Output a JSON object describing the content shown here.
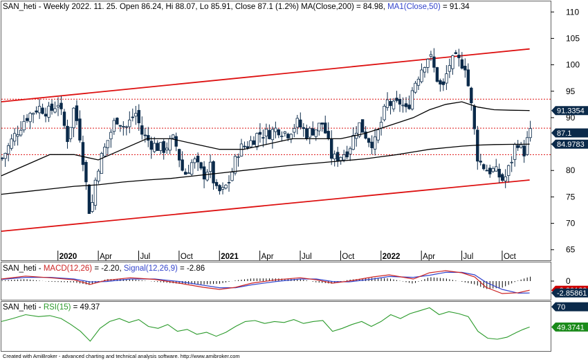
{
  "colors": {
    "candle_up": "#ffffff",
    "candle_down": "#0b2a4a",
    "channel": "#dd1111",
    "ma": "#000000",
    "macd": "#cc2222",
    "signal": "#3344cc",
    "rsi": "#2a9a2a",
    "tag_dark": "#0b2a4a",
    "tag_red": "#cc0000",
    "tag_green": "#1a8a1a"
  },
  "footer": "Created with AmiBroker - advanced charting and technical analysis software. http://www.amibroker.com",
  "chart_data": [
    {
      "type": "candlestick",
      "title": "SAN_heti - Weekly 2022. 11. 25. Open 86.24, Hi 88.07, Lo 85.91, Close 87.1 (1.2%) MA(Close,200) = 84.98, MA1(Close,50) = 91.34",
      "title_parts": {
        "symbol": "SAN_heti",
        "quote": " - Weekly 2022. 11. 25. Open 86.24, Hi 88.07, Lo 85.91, Close 87.1 (1.2%) ",
        "ma200_label": "MA(Close,200)",
        "ma200_text": " = 84.98, ",
        "ma50_label": "MA1(Close,50)",
        "ma50_text": " = 91.34"
      },
      "ylim": [
        63,
        112
      ],
      "yticks": [
        65,
        70,
        75,
        80,
        85,
        90,
        95,
        100,
        105,
        110
      ],
      "x_range": [
        2019.65,
        2023.05
      ],
      "x_ticks": [
        {
          "x": 2020.0,
          "label": "2020",
          "bold": true
        },
        {
          "x": 2020.25,
          "label": "Apr",
          "bold": false
        },
        {
          "x": 2020.5,
          "label": "Jul",
          "bold": false
        },
        {
          "x": 2020.75,
          "label": "Oct",
          "bold": false
        },
        {
          "x": 2021.0,
          "label": "2021",
          "bold": true
        },
        {
          "x": 2021.25,
          "label": "Apr",
          "bold": false
        },
        {
          "x": 2021.5,
          "label": "Jul",
          "bold": false
        },
        {
          "x": 2021.75,
          "label": "Oct",
          "bold": false
        },
        {
          "x": 2022.0,
          "label": "2022",
          "bold": true
        },
        {
          "x": 2022.25,
          "label": "Apr",
          "bold": false
        },
        {
          "x": 2022.5,
          "label": "Jul",
          "bold": false
        },
        {
          "x": 2022.75,
          "label": "Oct",
          "bold": false
        }
      ],
      "price_path": [
        [
          2019.65,
          82
        ],
        [
          2019.72,
          86
        ],
        [
          2019.8,
          90
        ],
        [
          2019.88,
          92
        ],
        [
          2019.95,
          91
        ],
        [
          2020.0,
          93
        ],
        [
          2020.06,
          86
        ],
        [
          2020.1,
          92
        ],
        [
          2020.14,
          86
        ],
        [
          2020.2,
          71
        ],
        [
          2020.24,
          80
        ],
        [
          2020.3,
          85
        ],
        [
          2020.36,
          90
        ],
        [
          2020.42,
          88
        ],
        [
          2020.48,
          91
        ],
        [
          2020.52,
          87
        ],
        [
          2020.58,
          85
        ],
        [
          2020.65,
          84
        ],
        [
          2020.72,
          86
        ],
        [
          2020.78,
          79
        ],
        [
          2020.84,
          82
        ],
        [
          2020.9,
          79
        ],
        [
          2020.94,
          81
        ],
        [
          2020.98,
          76
        ],
        [
          2021.02,
          76
        ],
        [
          2021.06,
          78
        ],
        [
          2021.12,
          84
        ],
        [
          2021.18,
          85
        ],
        [
          2021.24,
          87
        ],
        [
          2021.3,
          87
        ],
        [
          2021.36,
          88
        ],
        [
          2021.42,
          87
        ],
        [
          2021.48,
          89
        ],
        [
          2021.54,
          87
        ],
        [
          2021.6,
          88
        ],
        [
          2021.64,
          89
        ],
        [
          2021.7,
          82
        ],
        [
          2021.76,
          83
        ],
        [
          2021.8,
          84
        ],
        [
          2021.86,
          89
        ],
        [
          2021.92,
          86
        ],
        [
          2021.96,
          85
        ],
        [
          2022.0,
          89
        ],
        [
          2022.04,
          93
        ],
        [
          2022.08,
          92
        ],
        [
          2022.12,
          93
        ],
        [
          2022.16,
          91
        ],
        [
          2022.2,
          96
        ],
        [
          2022.26,
          100
        ],
        [
          2022.3,
          102
        ],
        [
          2022.34,
          98
        ],
        [
          2022.38,
          95
        ],
        [
          2022.42,
          100
        ],
        [
          2022.46,
          101
        ],
        [
          2022.52,
          100
        ],
        [
          2022.56,
          92
        ],
        [
          2022.6,
          82
        ],
        [
          2022.66,
          80
        ],
        [
          2022.7,
          80
        ],
        [
          2022.76,
          78
        ],
        [
          2022.8,
          81
        ],
        [
          2022.84,
          86
        ],
        [
          2022.88,
          83
        ],
        [
          2022.92,
          87.1
        ]
      ],
      "ma50": [
        [
          2019.65,
          79
        ],
        [
          2019.8,
          81
        ],
        [
          2019.95,
          83
        ],
        [
          2020.1,
          83
        ],
        [
          2020.25,
          82
        ],
        [
          2020.4,
          84
        ],
        [
          2020.55,
          86
        ],
        [
          2020.7,
          86
        ],
        [
          2020.85,
          85
        ],
        [
          2021.0,
          84
        ],
        [
          2021.15,
          84
        ],
        [
          2021.3,
          85
        ],
        [
          2021.45,
          86
        ],
        [
          2021.6,
          86
        ],
        [
          2021.75,
          86
        ],
        [
          2021.9,
          87
        ],
        [
          2022.0,
          88
        ],
        [
          2022.1,
          89
        ],
        [
          2022.2,
          90
        ],
        [
          2022.3,
          91.5
        ],
        [
          2022.4,
          92.5
        ],
        [
          2022.5,
          93
        ],
        [
          2022.6,
          92
        ],
        [
          2022.7,
          91.5
        ],
        [
          2022.8,
          91.4
        ],
        [
          2022.92,
          91.34
        ]
      ],
      "ma200": [
        [
          2019.65,
          75.5
        ],
        [
          2019.8,
          76
        ],
        [
          2019.95,
          76.5
        ],
        [
          2020.1,
          77
        ],
        [
          2020.25,
          77.3
        ],
        [
          2020.4,
          77.8
        ],
        [
          2020.55,
          78.2
        ],
        [
          2020.7,
          78.5
        ],
        [
          2020.85,
          79
        ],
        [
          2021.0,
          79.5
        ],
        [
          2021.15,
          80
        ],
        [
          2021.3,
          80.5
        ],
        [
          2021.45,
          81
        ],
        [
          2021.6,
          81.4
        ],
        [
          2021.75,
          81.8
        ],
        [
          2021.9,
          82.2
        ],
        [
          2022.0,
          82.6
        ],
        [
          2022.1,
          83
        ],
        [
          2022.2,
          83.5
        ],
        [
          2022.3,
          84
        ],
        [
          2022.4,
          84.3
        ],
        [
          2022.5,
          84.6
        ],
        [
          2022.6,
          84.8
        ],
        [
          2022.7,
          84.9
        ],
        [
          2022.8,
          84.95
        ],
        [
          2022.92,
          84.98
        ]
      ],
      "channel_upper": [
        [
          2019.65,
          93
        ],
        [
          2022.92,
          103
        ]
      ],
      "channel_lower": [
        [
          2019.65,
          68.5
        ],
        [
          2022.92,
          78.2
        ]
      ],
      "horizontal_levels": [
        93.5,
        88,
        83
      ],
      "price_tags": [
        {
          "value": 91.34,
          "label": "91.3354",
          "color_key": "tag_dark"
        },
        {
          "value": 87.1,
          "label": "87.1",
          "color_key": "tag_dark"
        },
        {
          "value": 84.98,
          "label": "84.9783",
          "color_key": "tag_dark"
        }
      ]
    },
    {
      "type": "line",
      "title": "MACD panel",
      "title_parts": {
        "symbol": "SAN_heti - ",
        "macd_label": "MACD(12,26)",
        "macd_value": " = -2.20, ",
        "signal_label": "Signal(12,26,9)",
        "signal_value": " = -2.86"
      },
      "ylim": [
        -4.5,
        4.5
      ],
      "yticks": [
        0
      ],
      "series": [
        {
          "name": "MACD(12,26)",
          "points": [
            [
              2019.65,
              0.5
            ],
            [
              2019.8,
              1.2
            ],
            [
              2019.95,
              0.8
            ],
            [
              2020.1,
              0.3
            ],
            [
              2020.2,
              -0.8
            ],
            [
              2020.3,
              0.2
            ],
            [
              2020.45,
              0.8
            ],
            [
              2020.6,
              0.4
            ],
            [
              2020.75,
              -0.5
            ],
            [
              2020.9,
              -1.5
            ],
            [
              2021.0,
              -2.0
            ],
            [
              2021.1,
              -1.5
            ],
            [
              2021.2,
              -0.5
            ],
            [
              2021.35,
              0.3
            ],
            [
              2021.5,
              0.8
            ],
            [
              2021.6,
              0.3
            ],
            [
              2021.7,
              -0.5
            ],
            [
              2021.8,
              0.0
            ],
            [
              2021.95,
              1.0
            ],
            [
              2022.05,
              1.5
            ],
            [
              2022.2,
              0.5
            ],
            [
              2022.3,
              2.0
            ],
            [
              2022.4,
              2.5
            ],
            [
              2022.5,
              2.0
            ],
            [
              2022.58,
              1.0
            ],
            [
              2022.65,
              -1.5
            ],
            [
              2022.75,
              -3.0
            ],
            [
              2022.85,
              -2.8
            ],
            [
              2022.92,
              -2.2
            ]
          ]
        },
        {
          "name": "Signal(12,26,9)",
          "points": [
            [
              2019.65,
              0.4
            ],
            [
              2019.8,
              0.9
            ],
            [
              2019.95,
              0.9
            ],
            [
              2020.1,
              0.5
            ],
            [
              2020.2,
              -0.2
            ],
            [
              2020.3,
              -0.1
            ],
            [
              2020.45,
              0.5
            ],
            [
              2020.6,
              0.5
            ],
            [
              2020.75,
              -0.1
            ],
            [
              2020.9,
              -1.0
            ],
            [
              2021.0,
              -1.6
            ],
            [
              2021.1,
              -1.6
            ],
            [
              2021.2,
              -0.9
            ],
            [
              2021.35,
              -0.1
            ],
            [
              2021.5,
              0.5
            ],
            [
              2021.6,
              0.5
            ],
            [
              2021.7,
              -0.1
            ],
            [
              2021.8,
              -0.2
            ],
            [
              2021.95,
              0.5
            ],
            [
              2022.05,
              1.1
            ],
            [
              2022.2,
              0.9
            ],
            [
              2022.3,
              1.4
            ],
            [
              2022.4,
              2.1
            ],
            [
              2022.5,
              2.1
            ],
            [
              2022.58,
              1.5
            ],
            [
              2022.65,
              -0.3
            ],
            [
              2022.75,
              -2.0
            ],
            [
              2022.85,
              -2.9
            ],
            [
              2022.92,
              -2.86
            ]
          ]
        }
      ],
      "value_tags": [
        {
          "value": -2.2,
          "label": "-2.20122",
          "color_key": "tag_red"
        },
        {
          "value": -2.86,
          "label": "-2.85861",
          "color_key": "tag_dark"
        }
      ]
    },
    {
      "type": "line",
      "title": "RSI panel",
      "title_parts": {
        "symbol": "SAN_heti - ",
        "rsi_label": "RSI(15)",
        "rsi_value": " = 49.37"
      },
      "ylim": [
        25,
        75
      ],
      "yticks": [
        70
      ],
      "series": [
        {
          "name": "RSI(15)",
          "points": [
            [
              2019.65,
              55
            ],
            [
              2019.72,
              58
            ],
            [
              2019.8,
              62
            ],
            [
              2019.88,
              60
            ],
            [
              2019.95,
              61
            ],
            [
              2020.02,
              58
            ],
            [
              2020.08,
              52
            ],
            [
              2020.14,
              45
            ],
            [
              2020.2,
              35
            ],
            [
              2020.26,
              48
            ],
            [
              2020.32,
              55
            ],
            [
              2020.38,
              58
            ],
            [
              2020.44,
              54
            ],
            [
              2020.5,
              57
            ],
            [
              2020.56,
              50
            ],
            [
              2020.62,
              48
            ],
            [
              2020.68,
              52
            ],
            [
              2020.74,
              45
            ],
            [
              2020.8,
              47
            ],
            [
              2020.86,
              42
            ],
            [
              2020.92,
              44
            ],
            [
              2020.98,
              40
            ],
            [
              2021.04,
              44
            ],
            [
              2021.1,
              50
            ],
            [
              2021.16,
              55
            ],
            [
              2021.22,
              56
            ],
            [
              2021.28,
              53
            ],
            [
              2021.34,
              55
            ],
            [
              2021.4,
              54
            ],
            [
              2021.46,
              57
            ],
            [
              2021.52,
              53
            ],
            [
              2021.58,
              55
            ],
            [
              2021.64,
              56
            ],
            [
              2021.7,
              45
            ],
            [
              2021.76,
              48
            ],
            [
              2021.82,
              52
            ],
            [
              2021.88,
              55
            ],
            [
              2021.94,
              50
            ],
            [
              2022.0,
              55
            ],
            [
              2022.06,
              62
            ],
            [
              2022.12,
              58
            ],
            [
              2022.18,
              63
            ],
            [
              2022.24,
              66
            ],
            [
              2022.3,
              69
            ],
            [
              2022.36,
              62
            ],
            [
              2022.42,
              65
            ],
            [
              2022.48,
              63
            ],
            [
              2022.54,
              60
            ],
            [
              2022.6,
              45
            ],
            [
              2022.66,
              38
            ],
            [
              2022.72,
              37
            ],
            [
              2022.78,
              39
            ],
            [
              2022.84,
              44
            ],
            [
              2022.88,
              47
            ],
            [
              2022.92,
              49.37
            ]
          ]
        }
      ],
      "value_tags": [
        {
          "value": 70,
          "label": "70",
          "color_key": "tag_dark"
        },
        {
          "value": 49.37,
          "label": "49.3741",
          "color_key": "tag_green"
        }
      ]
    }
  ]
}
